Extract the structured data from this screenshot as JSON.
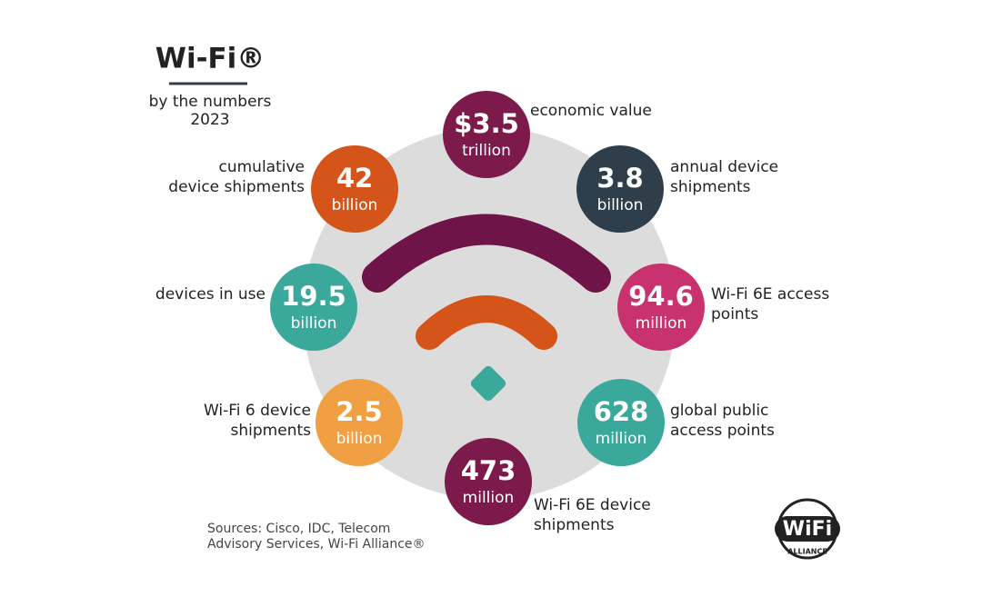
{
  "header": {
    "title": "Wi-Fi®",
    "subtitle": [
      "by the numbers",
      "2023"
    ]
  },
  "stats": [
    {
      "value": "$3.5",
      "unit": "trillion",
      "label": [
        "economic value"
      ]
    },
    {
      "value": "3.8",
      "unit": "billion",
      "label": [
        "annual device",
        "shipments"
      ]
    },
    {
      "value": "94.6",
      "unit": "million",
      "label": [
        "Wi-Fi 6E access",
        "points"
      ]
    },
    {
      "value": "628",
      "unit": "million",
      "label": [
        "global public",
        "access points"
      ]
    },
    {
      "value": "473",
      "unit": "million",
      "label": [
        "Wi-Fi 6E device",
        "shipments"
      ]
    },
    {
      "value": "2.5",
      "unit": "billion",
      "label": [
        "Wi-Fi 6 device",
        "shipments"
      ]
    },
    {
      "value": "19.5",
      "unit": "billion",
      "label": [
        "devices in use"
      ]
    },
    {
      "value": "42",
      "unit": "billion",
      "label": [
        "cumulative",
        "device shipments"
      ]
    }
  ],
  "sources": [
    "Sources: Cisco, IDC, Telecom",
    "Advisory Services, Wi-Fi Alliance®"
  ],
  "logo": {
    "text": "WiFi",
    "subtext": "ALLIANCE"
  }
}
